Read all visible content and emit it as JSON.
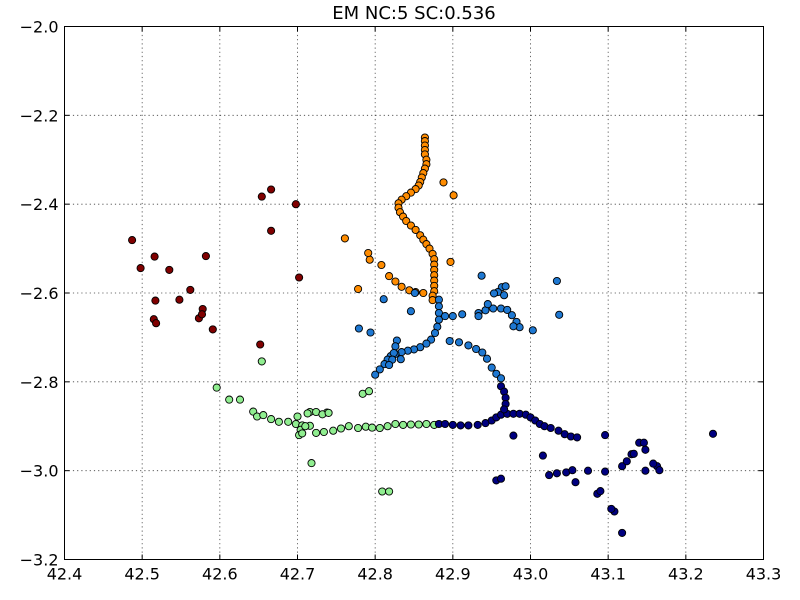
{
  "chart_data": {
    "type": "scatter",
    "title": "EM NC:5 SC:0.536",
    "xlabel": "",
    "ylabel": "",
    "xlim": [
      42.4,
      43.3
    ],
    "ylim": [
      -3.2,
      -2.0
    ],
    "x_ticks": [
      42.4,
      42.5,
      42.6,
      42.7,
      42.8,
      42.9,
      43.0,
      43.1,
      43.2,
      43.3
    ],
    "y_ticks": [
      -3.2,
      -3.0,
      -2.8,
      -2.6,
      -2.4,
      -2.2,
      -2.0
    ],
    "x_tick_labels": [
      "42.4",
      "42.5",
      "42.6",
      "42.7",
      "42.8",
      "42.9",
      "43.0",
      "43.1",
      "43.2",
      "43.3"
    ],
    "y_tick_labels": [
      "−3.2",
      "−3.0",
      "−2.8",
      "−2.6",
      "−2.4",
      "−2.2",
      "−2.0"
    ],
    "grid": true,
    "legend": false,
    "series": [
      {
        "color": "#800000",
        "points": [
          [
            42.487,
            -2.481
          ],
          [
            42.498,
            -2.544
          ],
          [
            42.516,
            -2.518
          ],
          [
            42.517,
            -2.617
          ],
          [
            42.515,
            -2.659
          ],
          [
            42.518,
            -2.668
          ],
          [
            42.535,
            -2.548
          ],
          [
            42.548,
            -2.615
          ],
          [
            42.562,
            -2.593
          ],
          [
            42.573,
            -2.657
          ],
          [
            42.578,
            -2.636
          ],
          [
            42.577,
            -2.648
          ],
          [
            42.582,
            -2.517
          ],
          [
            42.591,
            -2.682
          ],
          [
            42.654,
            -2.383
          ],
          [
            42.666,
            -2.367
          ],
          [
            42.666,
            -2.46
          ],
          [
            42.698,
            -2.4
          ],
          [
            42.702,
            -2.565
          ],
          [
            42.652,
            -2.716
          ]
        ]
      },
      {
        "color": "#ff8c00",
        "points": [
          [
            42.864,
            -2.25
          ],
          [
            42.864,
            -2.258
          ],
          [
            42.864,
            -2.268
          ],
          [
            42.864,
            -2.278
          ],
          [
            42.864,
            -2.288
          ],
          [
            42.866,
            -2.3
          ],
          [
            42.866,
            -2.31
          ],
          [
            42.864,
            -2.32
          ],
          [
            42.862,
            -2.33
          ],
          [
            42.86,
            -2.34
          ],
          [
            42.858,
            -2.35
          ],
          [
            42.856,
            -2.358
          ],
          [
            42.852,
            -2.366
          ],
          [
            42.846,
            -2.374
          ],
          [
            42.84,
            -2.382
          ],
          [
            42.834,
            -2.39
          ],
          [
            42.83,
            -2.398
          ],
          [
            42.83,
            -2.408
          ],
          [
            42.832,
            -2.418
          ],
          [
            42.836,
            -2.428
          ],
          [
            42.84,
            -2.438
          ],
          [
            42.846,
            -2.448
          ],
          [
            42.852,
            -2.458
          ],
          [
            42.858,
            -2.47
          ],
          [
            42.862,
            -2.48
          ],
          [
            42.866,
            -2.49
          ],
          [
            42.87,
            -2.5
          ],
          [
            42.874,
            -2.512
          ],
          [
            42.876,
            -2.524
          ],
          [
            42.876,
            -2.536
          ],
          [
            42.876,
            -2.548
          ],
          [
            42.876,
            -2.56
          ],
          [
            42.876,
            -2.572
          ],
          [
            42.876,
            -2.584
          ],
          [
            42.876,
            -2.596
          ],
          [
            42.874,
            -2.606
          ],
          [
            42.874,
            -2.616
          ],
          [
            42.862,
            -2.6
          ],
          [
            42.852,
            -2.598
          ],
          [
            42.844,
            -2.594
          ],
          [
            42.834,
            -2.586
          ],
          [
            42.826,
            -2.574
          ],
          [
            42.818,
            -2.562
          ],
          [
            42.808,
            -2.537
          ],
          [
            42.793,
            -2.525
          ],
          [
            42.791,
            -2.51
          ],
          [
            42.761,
            -2.477
          ],
          [
            42.778,
            -2.591
          ],
          [
            42.888,
            -2.351
          ],
          [
            42.901,
            -2.38
          ],
          [
            42.897,
            -2.53
          ]
        ]
      },
      {
        "color": "#1e78d2",
        "points": [
          [
            42.882,
            -2.615
          ],
          [
            42.882,
            -2.63
          ],
          [
            42.882,
            -2.645
          ],
          [
            42.882,
            -2.66
          ],
          [
            42.88,
            -2.676
          ],
          [
            42.877,
            -2.69
          ],
          [
            42.872,
            -2.705
          ],
          [
            42.866,
            -2.714
          ],
          [
            42.858,
            -2.722
          ],
          [
            42.85,
            -2.727
          ],
          [
            42.842,
            -2.73
          ],
          [
            42.834,
            -2.733
          ],
          [
            42.826,
            -2.737
          ],
          [
            42.82,
            -2.742
          ],
          [
            42.816,
            -2.75
          ],
          [
            42.812,
            -2.76
          ],
          [
            42.806,
            -2.772
          ],
          [
            42.8,
            -2.784
          ],
          [
            42.828,
            -2.707
          ],
          [
            42.826,
            -2.72
          ],
          [
            42.824,
            -2.735
          ],
          [
            42.822,
            -2.75
          ],
          [
            42.818,
            -2.762
          ],
          [
            42.89,
            -2.652
          ],
          [
            42.9,
            -2.652
          ],
          [
            42.912,
            -2.648
          ],
          [
            42.933,
            -2.645
          ],
          [
            42.942,
            -2.639
          ],
          [
            42.952,
            -2.635
          ],
          [
            42.962,
            -2.635
          ],
          [
            42.97,
            -2.638
          ],
          [
            42.976,
            -2.65
          ],
          [
            42.982,
            -2.665
          ],
          [
            42.986,
            -2.677
          ],
          [
            42.978,
            -2.675
          ],
          [
            42.963,
            -2.587
          ],
          [
            42.958,
            -2.598
          ],
          [
            42.966,
            -2.605
          ],
          [
            42.945,
            -2.625
          ],
          [
            42.937,
            -2.561
          ],
          [
            42.933,
            -2.652
          ],
          [
            42.953,
            -2.601
          ],
          [
            42.968,
            -2.585
          ],
          [
            42.851,
            -2.6
          ],
          [
            42.811,
            -2.614
          ],
          [
            42.846,
            -2.641
          ],
          [
            42.779,
            -2.68
          ],
          [
            42.794,
            -2.689
          ],
          [
            42.896,
            -2.708
          ],
          [
            42.908,
            -2.711
          ],
          [
            42.92,
            -2.718
          ],
          [
            42.93,
            -2.726
          ],
          [
            42.938,
            -2.734
          ],
          [
            42.944,
            -2.748
          ],
          [
            42.95,
            -2.768
          ],
          [
            42.956,
            -2.782
          ],
          [
            42.962,
            -2.792
          ],
          [
            43.003,
            -2.684
          ],
          [
            43.034,
            -2.573
          ],
          [
            43.037,
            -2.649
          ],
          [
            42.833,
            -2.749
          ]
        ]
      },
      {
        "color": "#90ee90",
        "points": [
          [
            42.596,
            -2.813
          ],
          [
            42.612,
            -2.84
          ],
          [
            42.626,
            -2.84
          ],
          [
            42.643,
            -2.867
          ],
          [
            42.648,
            -2.878
          ],
          [
            42.656,
            -2.875
          ],
          [
            42.666,
            -2.884
          ],
          [
            42.676,
            -2.89
          ],
          [
            42.688,
            -2.89
          ],
          [
            42.698,
            -2.895
          ],
          [
            42.706,
            -2.898
          ],
          [
            42.716,
            -2.899
          ],
          [
            42.724,
            -2.915
          ],
          [
            42.734,
            -2.913
          ],
          [
            42.746,
            -2.91
          ],
          [
            42.756,
            -2.905
          ],
          [
            42.766,
            -2.9
          ],
          [
            42.778,
            -2.904
          ],
          [
            42.788,
            -2.901
          ],
          [
            42.796,
            -2.903
          ],
          [
            42.806,
            -2.904
          ],
          [
            42.816,
            -2.9
          ],
          [
            42.826,
            -2.895
          ],
          [
            42.836,
            -2.897
          ],
          [
            42.846,
            -2.896
          ],
          [
            42.856,
            -2.896
          ],
          [
            42.866,
            -2.895
          ],
          [
            42.876,
            -2.897
          ],
          [
            42.7,
            -2.878
          ],
          [
            42.704,
            -2.908
          ],
          [
            42.71,
            -2.9
          ],
          [
            42.716,
            -2.868
          ],
          [
            42.724,
            -2.868
          ],
          [
            42.738,
            -2.869
          ],
          [
            42.732,
            -2.873
          ],
          [
            42.74,
            -2.87
          ],
          [
            42.702,
            -2.92
          ],
          [
            42.706,
            -2.916
          ],
          [
            42.718,
            -2.983
          ],
          [
            42.809,
            -3.047
          ],
          [
            42.818,
            -3.047
          ],
          [
            42.784,
            -2.827
          ],
          [
            42.792,
            -2.821
          ],
          [
            42.654,
            -2.754
          ],
          [
            42.713,
            -2.871
          ]
        ]
      },
      {
        "color": "#000080",
        "points": [
          [
            42.882,
            -2.895
          ],
          [
            42.89,
            -2.895
          ],
          [
            42.9,
            -2.897
          ],
          [
            42.91,
            -2.898
          ],
          [
            42.92,
            -2.898
          ],
          [
            42.932,
            -2.897
          ],
          [
            42.942,
            -2.893
          ],
          [
            42.95,
            -2.887
          ],
          [
            42.956,
            -2.88
          ],
          [
            42.962,
            -2.874
          ],
          [
            42.97,
            -2.872
          ],
          [
            42.978,
            -2.872
          ],
          [
            42.986,
            -2.872
          ],
          [
            42.994,
            -2.874
          ],
          [
            43.0,
            -2.88
          ],
          [
            43.006,
            -2.887
          ],
          [
            43.012,
            -2.895
          ],
          [
            43.018,
            -2.9
          ],
          [
            43.026,
            -2.904
          ],
          [
            43.036,
            -2.91
          ],
          [
            43.044,
            -2.918
          ],
          [
            43.052,
            -2.923
          ],
          [
            43.06,
            -2.925
          ],
          [
            42.962,
            -2.81
          ],
          [
            42.966,
            -2.822
          ],
          [
            42.968,
            -2.836
          ],
          [
            42.968,
            -2.85
          ],
          [
            42.966,
            -2.862
          ],
          [
            42.978,
            -2.921
          ],
          [
            43.016,
            -2.966
          ],
          [
            43.024,
            -3.01
          ],
          [
            43.034,
            -3.006
          ],
          [
            43.046,
            -3.004
          ],
          [
            43.054,
            -2.999
          ],
          [
            43.058,
            -3.026
          ],
          [
            43.074,
            -3.0
          ],
          [
            43.086,
            -3.052
          ],
          [
            43.09,
            -3.046
          ],
          [
            43.096,
            -2.92
          ],
          [
            43.096,
            -3.002
          ],
          [
            43.108,
            -3.092
          ],
          [
            43.104,
            -3.086
          ],
          [
            43.118,
            -3.14
          ],
          [
            43.118,
            -2.99
          ],
          [
            43.124,
            -2.979
          ],
          [
            43.13,
            -2.963
          ],
          [
            43.14,
            -2.937
          ],
          [
            43.146,
            -2.937
          ],
          [
            43.148,
            -2.953
          ],
          [
            43.148,
            -3.0
          ],
          [
            43.163,
            -2.99
          ],
          [
            43.166,
            -2.999
          ],
          [
            43.158,
            -2.984
          ],
          [
            42.956,
            -3.022
          ],
          [
            42.962,
            -3.018
          ],
          [
            43.235,
            -2.917
          ],
          [
            43.133,
            -2.962
          ]
        ]
      }
    ]
  }
}
